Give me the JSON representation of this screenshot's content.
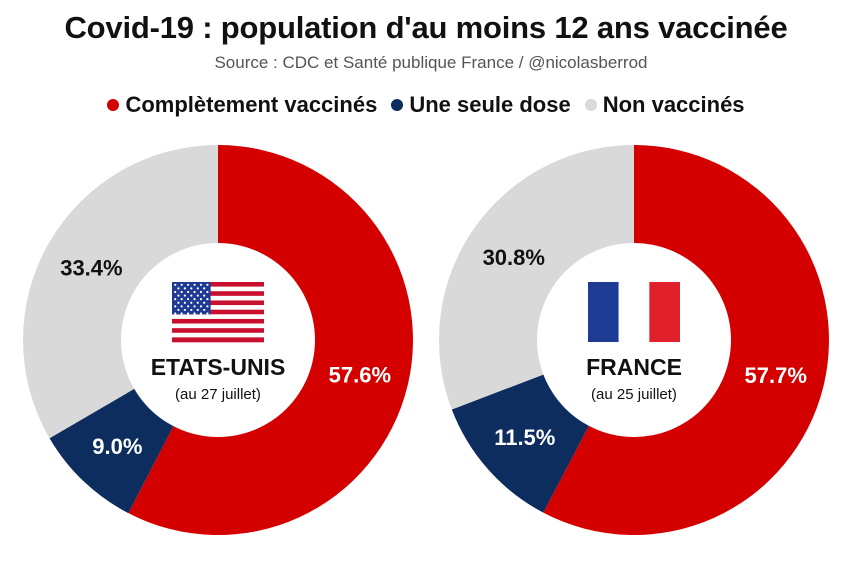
{
  "title": "Covid-19 : population d'au moins 12 ans vaccinée",
  "source": "Source : CDC et Santé publique France / @nicolasberrod",
  "legend": [
    {
      "label": "Complètement vaccinés",
      "color": "#d40000"
    },
    {
      "label": "Une seule dose",
      "color": "#0d2d5e"
    },
    {
      "label": "Non vaccinés",
      "color": "#d9d9d9"
    }
  ],
  "chart_data": [
    {
      "type": "pie",
      "variant": "donut",
      "country": "ETATS-UNIS",
      "date": "(au 27 juillet)",
      "flag": "us-flag",
      "categories": [
        "Complètement vaccinés",
        "Une seule dose",
        "Non vaccinés"
      ],
      "values": [
        57.6,
        9.0,
        33.4
      ],
      "labels": [
        "57.6%",
        "9.0%",
        "33.4%"
      ],
      "colors": [
        "#d40000",
        "#0d2d5e",
        "#d9d9d9"
      ]
    },
    {
      "type": "pie",
      "variant": "donut",
      "country": "FRANCE",
      "date": "(au 25 juillet)",
      "flag": "france-flag",
      "categories": [
        "Complètement vaccinés",
        "Une seule dose",
        "Non vaccinés"
      ],
      "values": [
        57.7,
        11.5,
        30.8
      ],
      "labels": [
        "57.7%",
        "11.5%",
        "30.8%"
      ],
      "colors": [
        "#d40000",
        "#0d2d5e",
        "#d9d9d9"
      ]
    }
  ]
}
